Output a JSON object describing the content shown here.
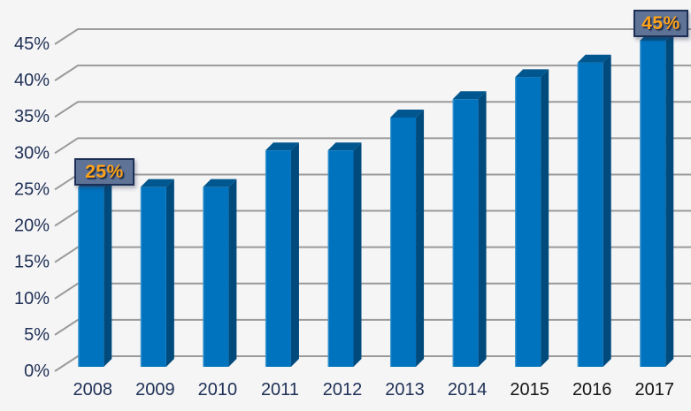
{
  "chart_data": {
    "type": "bar",
    "style": "3d-column",
    "categories": [
      "2008",
      "2009",
      "2010",
      "2011",
      "2012",
      "2013",
      "2014",
      "2015",
      "2016",
      "2017"
    ],
    "values": [
      25,
      25,
      25,
      30,
      30,
      34.5,
      37,
      40,
      42,
      45
    ],
    "y_ticks": [
      "0%",
      "5%",
      "10%",
      "15%",
      "20%",
      "25%",
      "30%",
      "35%",
      "40%",
      "45%"
    ],
    "ylim": [
      0,
      45
    ],
    "grid": true,
    "legend": false,
    "xlabel": "",
    "ylabel": "",
    "dark_label_indices": [
      7,
      8,
      9
    ],
    "annotations": [
      {
        "category": "2008",
        "label": "25%"
      },
      {
        "category": "2017",
        "label": "45%"
      }
    ]
  },
  "colors": {
    "background": "#F5F5F6",
    "gridline": "#9A9A9A",
    "axis_label": "#1F3055",
    "axis_label_dark": "#161616",
    "bar_front": "#0073BF",
    "bar_side": "#004A7C",
    "bar_top": "#00568E",
    "bar_highlight": "#4DA0D4",
    "callout_fill": "#5F7397",
    "callout_border": "#1E2F55",
    "callout_text": "#FFA319"
  }
}
